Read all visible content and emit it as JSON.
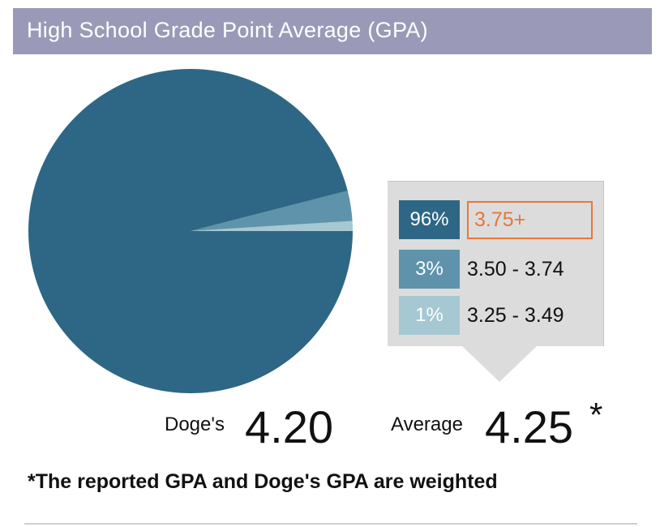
{
  "header": {
    "title": "High School Grade Point Average (GPA)"
  },
  "colors": {
    "header_bg": "#9a9ab8",
    "highlight": "#e8763a"
  },
  "chart_data": {
    "type": "pie",
    "title": "High School Grade Point Average (GPA)",
    "slices": [
      {
        "label": "3.75+",
        "percent_label": "96%",
        "value": 96,
        "color": "#2e6785"
      },
      {
        "label": "3.50 - 3.74",
        "percent_label": "3%",
        "value": 3,
        "color": "#5e93ab"
      },
      {
        "label": "3.25 - 3.49",
        "percent_label": "1%",
        "value": 1,
        "color": "#a5c8d2"
      }
    ],
    "highlighted": "3.75+"
  },
  "stats": {
    "student_label": "Doge's",
    "student_value": "4.20",
    "average_label": "Average",
    "average_value": "4.25",
    "average_marker": "*"
  },
  "footnote": "*The reported GPA and Doge's GPA are weighted"
}
